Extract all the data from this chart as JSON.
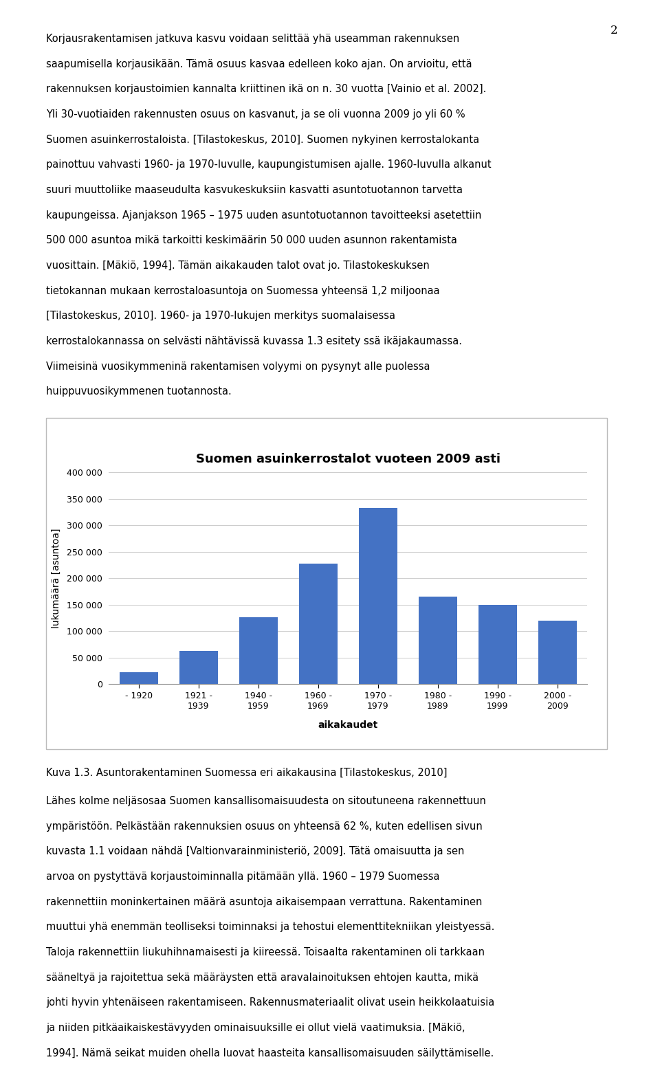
{
  "title": "Suomen asuinkerrostalot vuoteen 2009 asti",
  "xlabel": "aikakaudet",
  "ylabel": "lukumäärä [asuntoa]",
  "categories": [
    "- 1920",
    "1921 -\n1939",
    "1940 -\n1959",
    "1960 -\n1969",
    "1970 -\n1979",
    "1980 -\n1989",
    "1990 -\n1999",
    "2000 -\n2009"
  ],
  "values": [
    22000,
    63000,
    126000,
    228000,
    333000,
    165000,
    150000,
    120000
  ],
  "bar_color": "#4472C4",
  "ylim": [
    0,
    400000
  ],
  "yticks": [
    0,
    50000,
    100000,
    150000,
    200000,
    250000,
    300000,
    350000,
    400000
  ],
  "title_fontsize": 13,
  "axis_label_fontsize": 10,
  "tick_fontsize": 9,
  "background_color": "#ffffff",
  "grid_color": "#cccccc",
  "page_number": "2",
  "text_above": [
    "Korjausrakentamisen jatkuva kasvu voidaan selittää yhä useamman rakennuksen",
    "saapumisella korjausikään. Tämä osuus kasvaa edelleen koko ajan. On arvioitu, että",
    "rakennuksen korjaustoimien kannalta kriittinen ikä on n. 30 vuotta [Vainio et al. 2002].",
    "Yli 30-vuotiaiden rakennusten osuus on kasvanut, ja se oli vuonna 2009 jo yli 60 %",
    "Suomen asuinkerrostaloista. [Tilastokeskus, 2010]. Suomen nykyinen kerrostalokanta",
    "painottuu vahvasti 1960- ja 1970-luvulle, kaupungistumisen ajalle. 1960-luvulla alkanut",
    "suuri muuttoliike maaseudulta kasvukeskuksiin kasvatti asuntotuotannon tarvetta",
    "kaupungeissa. Ajanjakson 1965 – 1975 uuden asuntotuotannon tavoitteeksi asetettiin",
    "500 000 asuntoa mikä tarkoitti keskimäärin 50 000 uuden asunnon rakentamista",
    "vuosittain. [Mäkiö, 1994]. Tämän aikakauden talot ovat jo. Tilastokeskuksen",
    "tietokannan mukaan kerrostaloasuntoja on Suomessa yhteensä 1,2 miljoonaa",
    "[Tilastokeskus, 2010]. 1960- ja 1970-lukujen merkitys suomalaisessa",
    "kerrostalokannassa on selvästi nähtävissä kuvassa 1.3 esitety ssä ikäjakaumassa.",
    "Viimeisinä vuosikymmeninä rakentamisen volyymi on pysynyt alle puolessa",
    "huippuvuosikymmenen tuotannosta."
  ],
  "caption": "Kuva 1.3. Asuntorakentaminen Suomessa eri aikakausina [Tilastokeskus, 2010]",
  "text_below": [
    "Lähes kolme neljäsosaa Suomen kansallisomaisuudesta on sitoutuneena rakennettuun",
    "ympäristöön. Pelkästään rakennuksien osuus on yhteensä 62 %, kuten edellisen sivun",
    "kuvasta 1.1 voidaan nähdä [Valtionvarainministeriö, 2009]. Tätä omaisuutta ja sen",
    "arvoa on pystyttävä korjaustoiminnalla pitämään yllä. 1960 – 1979 Suomessa",
    "rakennettiin moninkertainen määrä asuntoja aikaisempaan verrattuna. Rakentaminen",
    "muuttui yhä enemmän teolliseksi toiminnaksi ja tehostui elementtitekniikan yleistyessä.",
    "Taloja rakennettiin liukuhihnamaisesti ja kiireessä. Toisaalta rakentaminen oli tarkkaan",
    "sääneltyä ja rajoitettua sekä määräysten että aravalainoituksen ehtojen kautta, mikä",
    "johti hyvin yhtenäiseen rakentamiseen. Rakennusmateriaalit olivat usein heikkolaatuisia",
    "ja niiden pitkäaikaiskestävyyden ominaisuuksille ei ollut vielä vaatimuksia. [Mäkiö,",
    "1994]. Nämä seikat muiden ohella luovat haasteita kansallisomaisuuden säilyttämiselle."
  ]
}
